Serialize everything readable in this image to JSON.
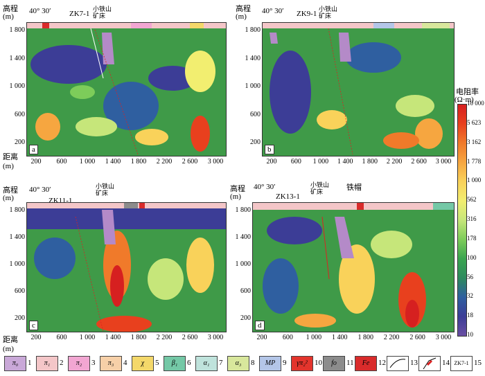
{
  "axes": {
    "elev_label": "高程",
    "elev_unit": "(m)",
    "dist_label": "距离",
    "dist_unit": "(m)",
    "y_ticks": [
      "1 800",
      "1 400",
      "1 000",
      "600",
      "200"
    ],
    "x_ticks": [
      "200",
      "600",
      "1 000",
      "1 400",
      "1 800",
      "2 200",
      "2 600",
      "3 000"
    ]
  },
  "panels": [
    {
      "letter": "a",
      "drill": "ZK7-1",
      "deposit": "小铁山\n矿床",
      "angle": "40° 30′"
    },
    {
      "letter": "b",
      "drill": "ZK9-1",
      "deposit": "小铁山\n矿床",
      "angle": "40° 30′"
    },
    {
      "letter": "c",
      "drill": "ZK11-1",
      "deposit": "小铁山\n矿床",
      "angle": "40° 30′"
    },
    {
      "letter": "d",
      "drill": "ZK13-1",
      "deposit": "小铁山\n矿床",
      "angle": "40° 30′",
      "extra": "铁帽"
    }
  ],
  "colorbar": {
    "title": "电阻率",
    "unit": "(Ω·m)",
    "ticks": [
      "10 000",
      "5 623",
      "3 162",
      "1 778",
      "1 000",
      "562",
      "316",
      "178",
      "100",
      "56",
      "32",
      "18",
      "10"
    ],
    "colors": [
      "#d62020",
      "#e8401e",
      "#f07a2a",
      "#f6a640",
      "#f9d25a",
      "#f2ee70",
      "#c6e67a",
      "#7dcc5a",
      "#3aa550",
      "#2e8a5e",
      "#2f5fa0",
      "#3c3d96",
      "#6a4fa3"
    ]
  },
  "legend": [
    {
      "num": "1",
      "symbol": "π₀",
      "color": "#c9a8d8"
    },
    {
      "num": "2",
      "symbol": "π₁",
      "color": "#f4c6c8"
    },
    {
      "num": "3",
      "symbol": "π₂",
      "color": "#f2a6d2"
    },
    {
      "num": "4",
      "symbol": "π₃",
      "color": "#f7d0a8"
    },
    {
      "num": "5",
      "symbol": "χ",
      "color": "#f4d86a"
    },
    {
      "num": "6",
      "symbol": "β₁",
      "color": "#74c8a6"
    },
    {
      "num": "7",
      "symbol": "α₁",
      "color": "#bfe3dc"
    },
    {
      "num": "8",
      "symbol": "α₃",
      "color": "#d8e79c"
    },
    {
      "num": "9",
      "symbol": "MP",
      "color": "#b4c6e8"
    },
    {
      "num": "10",
      "symbol": "γπ₂²",
      "color": "#e3342c"
    },
    {
      "num": "11",
      "symbol": "fo",
      "color": "#8c8c8c"
    },
    {
      "num": "12",
      "symbol": "Fe",
      "color": "#d92b2b"
    },
    {
      "num": "13",
      "symbol": "",
      "color": "#ffffff"
    },
    {
      "num": "14",
      "symbol": "",
      "color": "#ffffff"
    },
    {
      "num": "15",
      "symbol": "ZK7-1",
      "color": "#ffffff"
    }
  ]
}
